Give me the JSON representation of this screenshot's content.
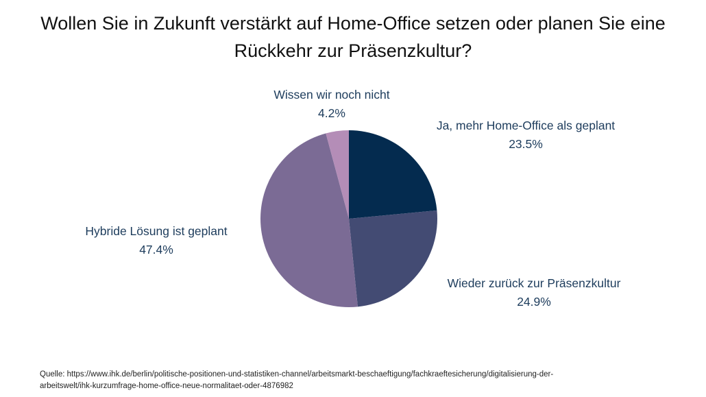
{
  "title": {
    "line1": "Wollen Sie in Zukunft verstärkt auf Home-Office setzen oder planen Sie eine",
    "line2": "Rückkehr zur Präsenzkultur?"
  },
  "source": {
    "line1": "Quelle: https://www.ihk.de/berlin/politische-positionen-und-statistiken-channel/arbeitsmarkt-beschaeftigung/fachkraeftesicherung/digitalisierung-der-",
    "line2": "arbeitswelt/ihk-kurzumfrage-home-office-neue-normalitaet-oder-4876982"
  },
  "chart_data": {
    "type": "pie",
    "title": "Wollen Sie in Zukunft verstärkt auf Home-Office setzen oder planen Sie eine Rückkehr zur Präsenzkultur?",
    "categories": [
      "Ja, mehr Home-Office als geplant",
      "Wieder zurück zur Präsenzkultur",
      "Hybride Lösung ist geplant",
      "Wissen wir noch nicht"
    ],
    "values": [
      23.5,
      24.9,
      47.4,
      4.2
    ],
    "value_labels": [
      "23.5%",
      "24.9%",
      "47.4%",
      "4.2%"
    ],
    "colors": [
      "#042b4f",
      "#434b73",
      "#7b6b95",
      "#b48db7"
    ],
    "start_angle": "12 o'clock",
    "direction": "clockwise",
    "labels_position": "outside"
  }
}
